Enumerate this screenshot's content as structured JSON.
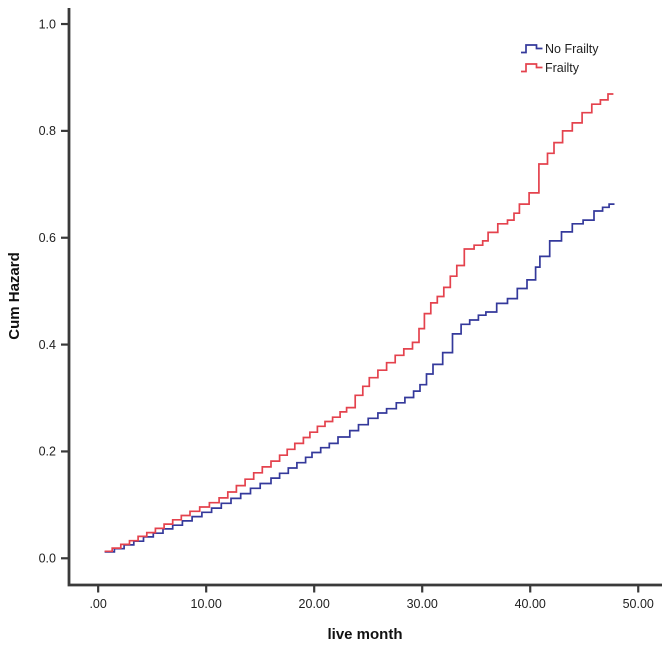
{
  "figure": {
    "y_axis_title": "Cum Hazard",
    "x_axis_title": "live month",
    "legend": [
      {
        "label": "No Frailty",
        "color": "#34399B"
      },
      {
        "label": "Frailty",
        "color": "#E4424D"
      }
    ]
  },
  "chart_data": {
    "type": "line",
    "subtype": "step-after",
    "title": "",
    "xlabel": "live month",
    "ylabel": "Cum Hazard",
    "xlim": [
      -2.7,
      52.2
    ],
    "ylim": [
      -0.05,
      1.03
    ],
    "grid": false,
    "legend_position": "top-right",
    "x_ticks": {
      "values": [
        0,
        10,
        20,
        30,
        40,
        50
      ],
      "labels": [
        ".00",
        "10.00",
        "20.00",
        "30.00",
        "40.00",
        "50.00"
      ]
    },
    "y_ticks": {
      "values": [
        0,
        0.2,
        0.4,
        0.6,
        0.8,
        1.0
      ],
      "labels": [
        "0.0",
        "0.2",
        "0.4",
        "0.6",
        "0.8",
        "1.0"
      ]
    },
    "axis_color": "#3a3a3a",
    "series": [
      {
        "name": "No Frailty",
        "color": "#34399B",
        "points": [
          [
            0.6,
            0.012
          ],
          [
            1.5,
            0.018
          ],
          [
            2.4,
            0.025
          ],
          [
            3.3,
            0.032
          ],
          [
            4.2,
            0.04
          ],
          [
            5.1,
            0.047
          ],
          [
            6.0,
            0.055
          ],
          [
            6.9,
            0.062
          ],
          [
            7.8,
            0.07
          ],
          [
            8.7,
            0.078
          ],
          [
            9.6,
            0.086
          ],
          [
            10.5,
            0.094
          ],
          [
            11.4,
            0.103
          ],
          [
            12.3,
            0.112
          ],
          [
            13.2,
            0.121
          ],
          [
            14.1,
            0.131
          ],
          [
            15.0,
            0.14
          ],
          [
            16.0,
            0.15
          ],
          [
            16.8,
            0.159
          ],
          [
            17.6,
            0.169
          ],
          [
            18.4,
            0.179
          ],
          [
            19.2,
            0.189
          ],
          [
            19.8,
            0.198
          ],
          [
            20.6,
            0.207
          ],
          [
            21.4,
            0.215
          ],
          [
            22.2,
            0.227
          ],
          [
            23.3,
            0.239
          ],
          [
            24.1,
            0.25
          ],
          [
            25.0,
            0.262
          ],
          [
            25.9,
            0.272
          ],
          [
            26.7,
            0.28
          ],
          [
            27.6,
            0.291
          ],
          [
            28.4,
            0.301
          ],
          [
            29.2,
            0.313
          ],
          [
            29.8,
            0.325
          ],
          [
            30.4,
            0.345
          ],
          [
            31.0,
            0.363
          ],
          [
            31.9,
            0.385
          ],
          [
            32.8,
            0.42
          ],
          [
            33.6,
            0.438
          ],
          [
            34.4,
            0.446
          ],
          [
            35.2,
            0.455
          ],
          [
            35.9,
            0.461
          ],
          [
            36.9,
            0.477
          ],
          [
            37.9,
            0.486
          ],
          [
            38.8,
            0.505
          ],
          [
            39.7,
            0.521
          ],
          [
            40.5,
            0.545
          ],
          [
            40.9,
            0.565
          ],
          [
            41.8,
            0.594
          ],
          [
            42.9,
            0.611
          ],
          [
            43.9,
            0.626
          ],
          [
            44.9,
            0.633
          ],
          [
            45.9,
            0.65
          ],
          [
            46.7,
            0.657
          ],
          [
            47.3,
            0.663
          ],
          [
            47.8,
            0.663
          ]
        ]
      },
      {
        "name": "Frailty",
        "color": "#E4424D",
        "points": [
          [
            0.6,
            0.013
          ],
          [
            1.3,
            0.019
          ],
          [
            2.1,
            0.026
          ],
          [
            2.9,
            0.033
          ],
          [
            3.7,
            0.041
          ],
          [
            4.5,
            0.048
          ],
          [
            5.3,
            0.056
          ],
          [
            6.1,
            0.064
          ],
          [
            6.9,
            0.072
          ],
          [
            7.7,
            0.08
          ],
          [
            8.5,
            0.088
          ],
          [
            9.4,
            0.096
          ],
          [
            10.3,
            0.104
          ],
          [
            11.2,
            0.113
          ],
          [
            12.0,
            0.124
          ],
          [
            12.8,
            0.136
          ],
          [
            13.6,
            0.148
          ],
          [
            14.4,
            0.16
          ],
          [
            15.2,
            0.171
          ],
          [
            16.0,
            0.182
          ],
          [
            16.8,
            0.193
          ],
          [
            17.5,
            0.204
          ],
          [
            18.2,
            0.215
          ],
          [
            19.0,
            0.226
          ],
          [
            19.6,
            0.236
          ],
          [
            20.3,
            0.247
          ],
          [
            21.0,
            0.256
          ],
          [
            21.7,
            0.264
          ],
          [
            22.4,
            0.274
          ],
          [
            23.0,
            0.282
          ],
          [
            23.8,
            0.305
          ],
          [
            24.5,
            0.322
          ],
          [
            25.1,
            0.338
          ],
          [
            25.9,
            0.352
          ],
          [
            26.7,
            0.366
          ],
          [
            27.5,
            0.38
          ],
          [
            28.3,
            0.392
          ],
          [
            29.1,
            0.404
          ],
          [
            29.7,
            0.43
          ],
          [
            30.2,
            0.458
          ],
          [
            30.8,
            0.478
          ],
          [
            31.4,
            0.49
          ],
          [
            32.0,
            0.507
          ],
          [
            32.6,
            0.528
          ],
          [
            33.2,
            0.548
          ],
          [
            33.9,
            0.579
          ],
          [
            34.8,
            0.586
          ],
          [
            35.6,
            0.594
          ],
          [
            36.1,
            0.61
          ],
          [
            37.0,
            0.626
          ],
          [
            37.9,
            0.633
          ],
          [
            38.5,
            0.646
          ],
          [
            39.0,
            0.663
          ],
          [
            39.9,
            0.684
          ],
          [
            40.8,
            0.738
          ],
          [
            41.6,
            0.758
          ],
          [
            42.2,
            0.778
          ],
          [
            43.0,
            0.8
          ],
          [
            43.9,
            0.815
          ],
          [
            44.8,
            0.834
          ],
          [
            45.7,
            0.85
          ],
          [
            46.5,
            0.858
          ],
          [
            47.2,
            0.869
          ],
          [
            47.7,
            0.869
          ]
        ]
      }
    ]
  }
}
